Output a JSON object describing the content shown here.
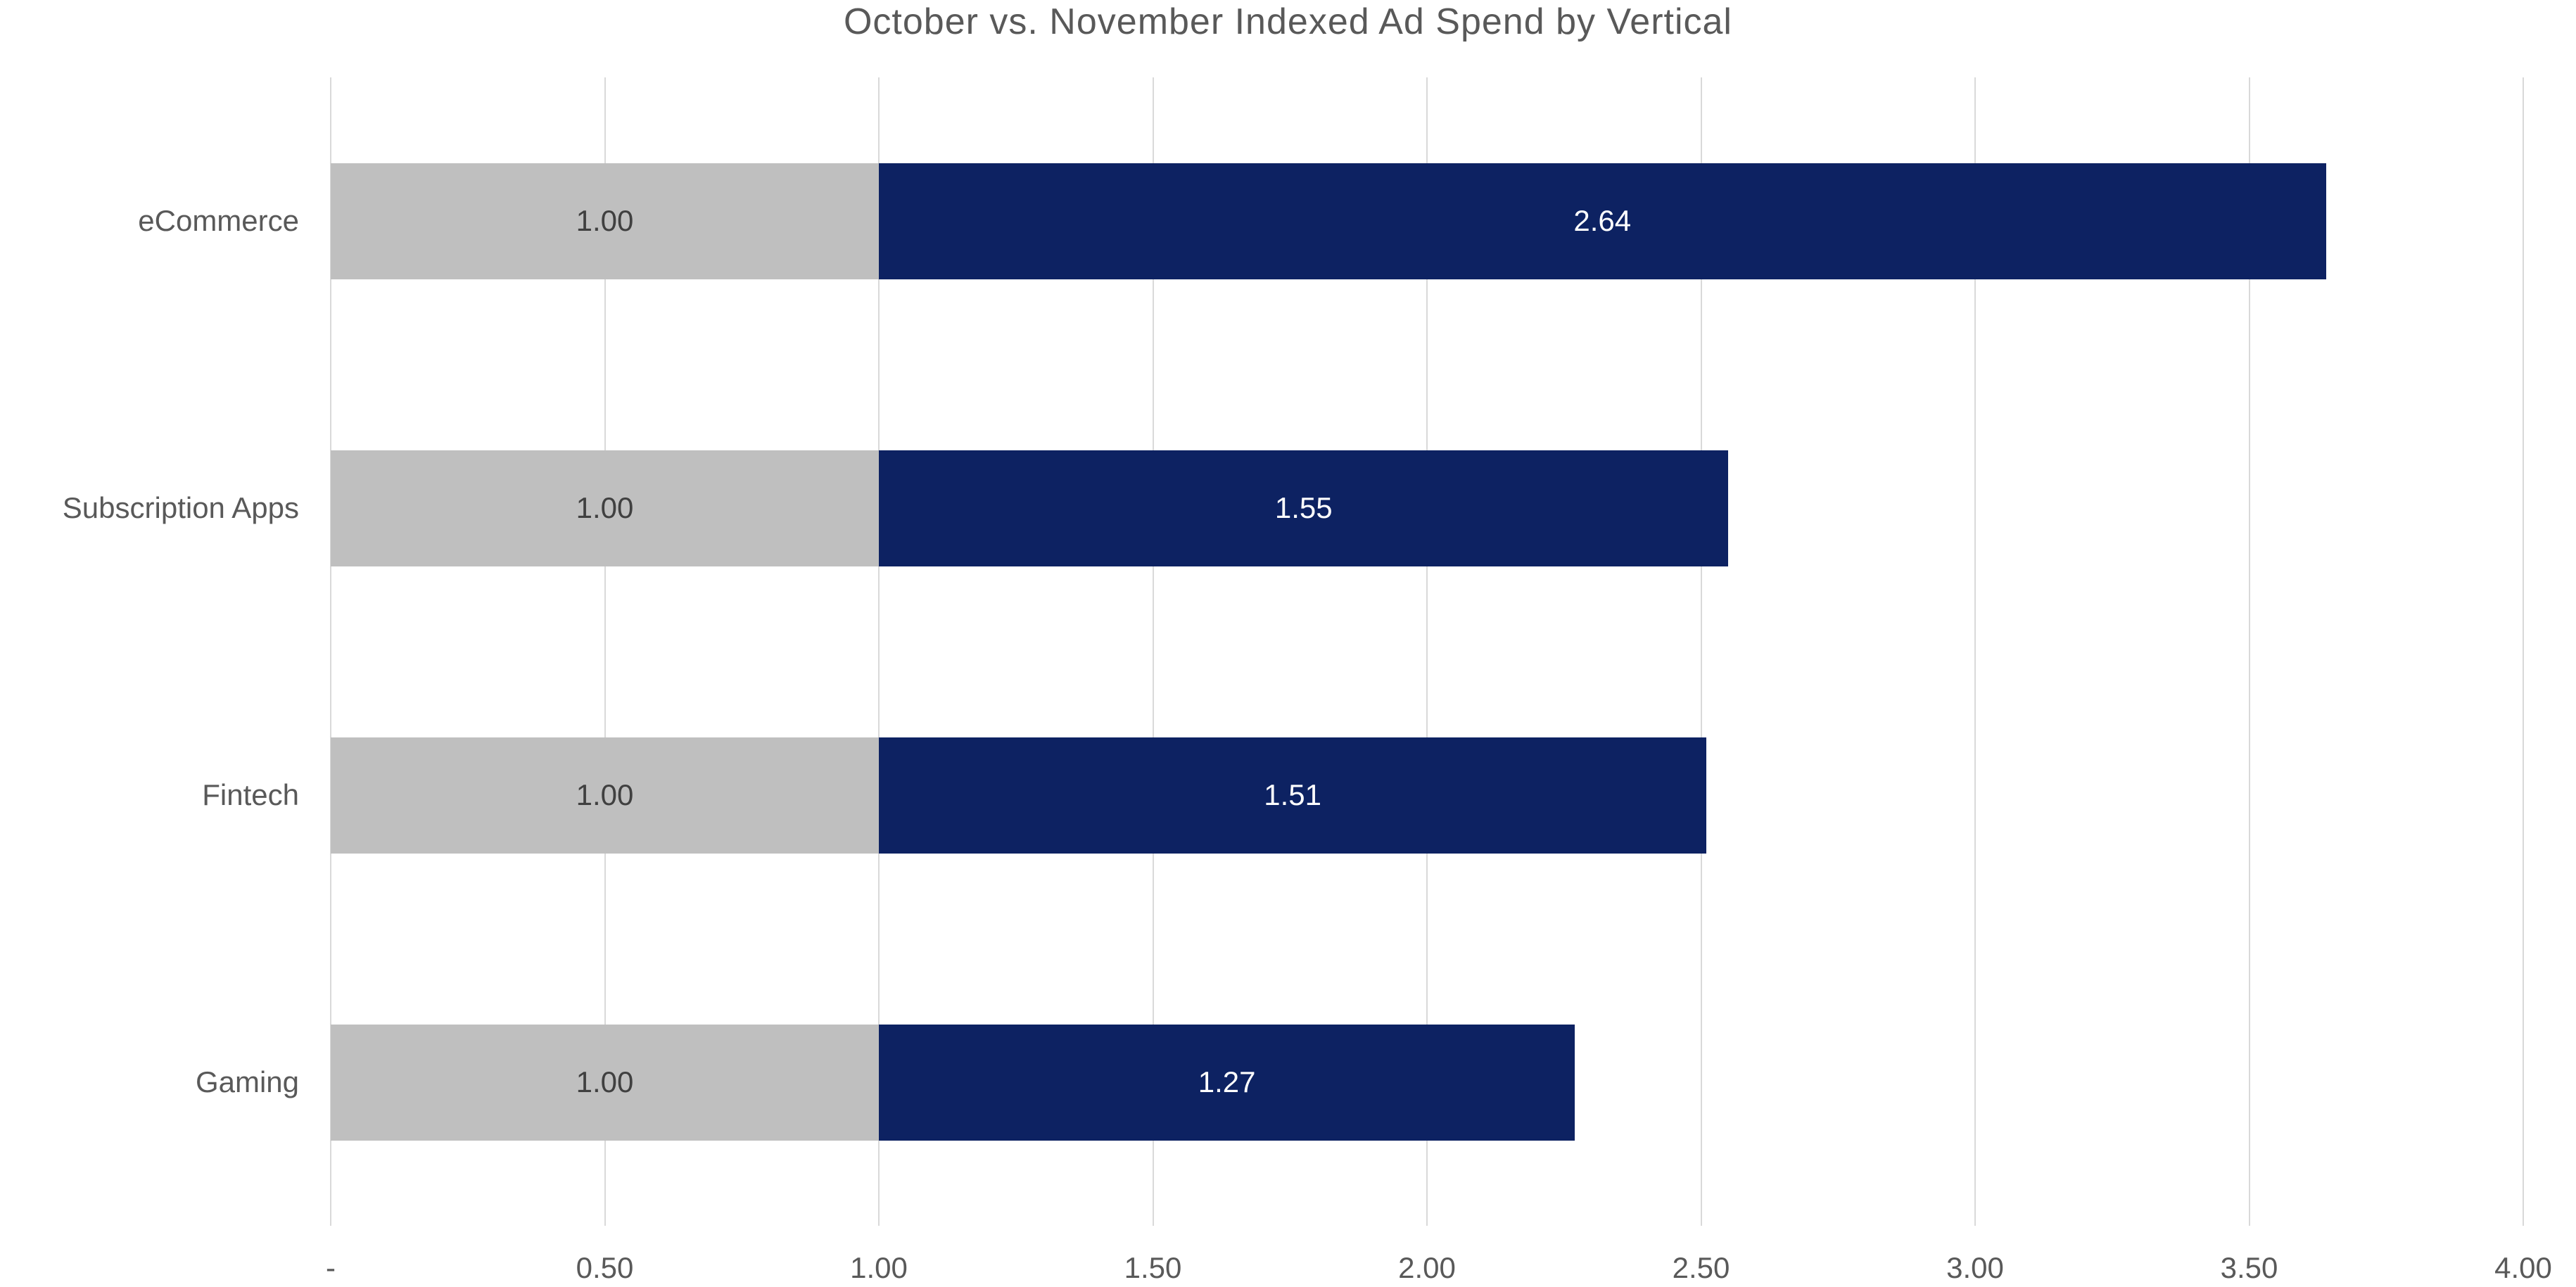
{
  "chart_data": {
    "type": "bar",
    "orientation": "horizontal",
    "stacked": true,
    "title": "October vs. November Indexed Ad Spend by Vertical",
    "categories": [
      "eCommerce",
      "Subscription Apps",
      "Fintech",
      "Gaming"
    ],
    "series": [
      {
        "name": "October",
        "color": "#bfbfbf",
        "values": [
          1.0,
          1.0,
          1.0,
          1.0
        ],
        "labels": [
          "1.00",
          "1.00",
          "1.00",
          "1.00"
        ],
        "label_color": "#404040"
      },
      {
        "name": "November",
        "color": "#0d2262",
        "values": [
          2.64,
          1.55,
          1.51,
          1.27
        ],
        "labels": [
          "2.64",
          "1.55",
          "1.51",
          "1.27"
        ],
        "label_color": "#ffffff"
      }
    ],
    "xlim": [
      0,
      4
    ],
    "x_ticks": [
      {
        "value": 0,
        "label": "-"
      },
      {
        "value": 0.5,
        "label": "0.50"
      },
      {
        "value": 1,
        "label": "1.00"
      },
      {
        "value": 1.5,
        "label": "1.50"
      },
      {
        "value": 2,
        "label": "2.00"
      },
      {
        "value": 2.5,
        "label": "2.50"
      },
      {
        "value": 3,
        "label": "3.00"
      },
      {
        "value": 3.5,
        "label": "3.50"
      },
      {
        "value": 4,
        "label": "4.00"
      }
    ],
    "grid": true,
    "legend": "none"
  },
  "style": {
    "background": "#ffffff",
    "grid_color": "#d9d9d9",
    "axis_text_color": "#595959",
    "category_text_color": "#595959",
    "title_color": "#595959"
  }
}
